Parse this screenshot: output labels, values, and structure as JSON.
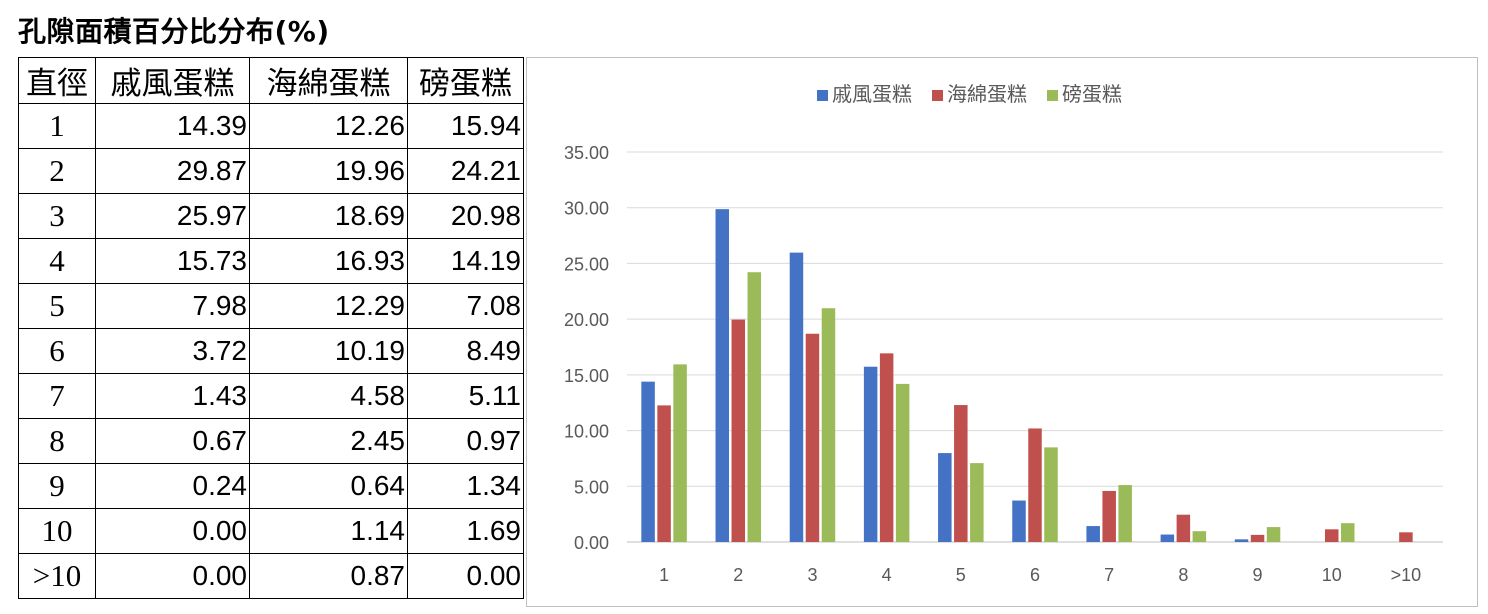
{
  "title": "孔隙面積百分比分布(%)",
  "table": {
    "headers": [
      "直徑",
      "戚風蛋糕",
      "海綿蛋糕",
      "磅蛋糕"
    ],
    "rows": [
      [
        "1",
        "14.39",
        "12.26",
        "15.94"
      ],
      [
        "2",
        "29.87",
        "19.96",
        "24.21"
      ],
      [
        "3",
        "25.97",
        "18.69",
        "20.98"
      ],
      [
        "4",
        "15.73",
        "16.93",
        "14.19"
      ],
      [
        "5",
        "7.98",
        "12.29",
        "7.08"
      ],
      [
        "6",
        "3.72",
        "10.19",
        "8.49"
      ],
      [
        "7",
        "1.43",
        "4.58",
        "5.11"
      ],
      [
        "8",
        "0.67",
        "2.45",
        "0.97"
      ],
      [
        "9",
        "0.24",
        "0.64",
        "1.34"
      ],
      [
        "10",
        "0.00",
        "1.14",
        "1.69"
      ],
      [
        ">10",
        "0.00",
        "0.87",
        "0.00"
      ]
    ]
  },
  "chart_data": {
    "type": "bar",
    "categories": [
      "1",
      "2",
      "3",
      "4",
      "5",
      "6",
      "7",
      "8",
      "9",
      "10",
      ">10"
    ],
    "series": [
      {
        "name": "戚風蛋糕",
        "color": "#4472c4",
        "values": [
          14.39,
          29.87,
          25.97,
          15.73,
          7.98,
          3.72,
          1.43,
          0.67,
          0.24,
          0.0,
          0.0
        ]
      },
      {
        "name": "海綿蛋糕",
        "color": "#c0504d",
        "values": [
          12.26,
          19.96,
          18.69,
          16.93,
          12.29,
          10.19,
          4.58,
          2.45,
          0.64,
          1.14,
          0.87
        ]
      },
      {
        "name": "磅蛋糕",
        "color": "#9bbb59",
        "values": [
          15.94,
          24.21,
          20.98,
          14.19,
          7.08,
          8.49,
          5.11,
          0.97,
          1.34,
          1.69,
          0.0
        ]
      }
    ],
    "ylim": [
      0,
      35
    ],
    "yticks": [
      "0.00",
      "5.00",
      "10.00",
      "15.00",
      "20.00",
      "25.00",
      "30.00",
      "35.00"
    ],
    "grid": true,
    "legend_position": "top-center"
  }
}
